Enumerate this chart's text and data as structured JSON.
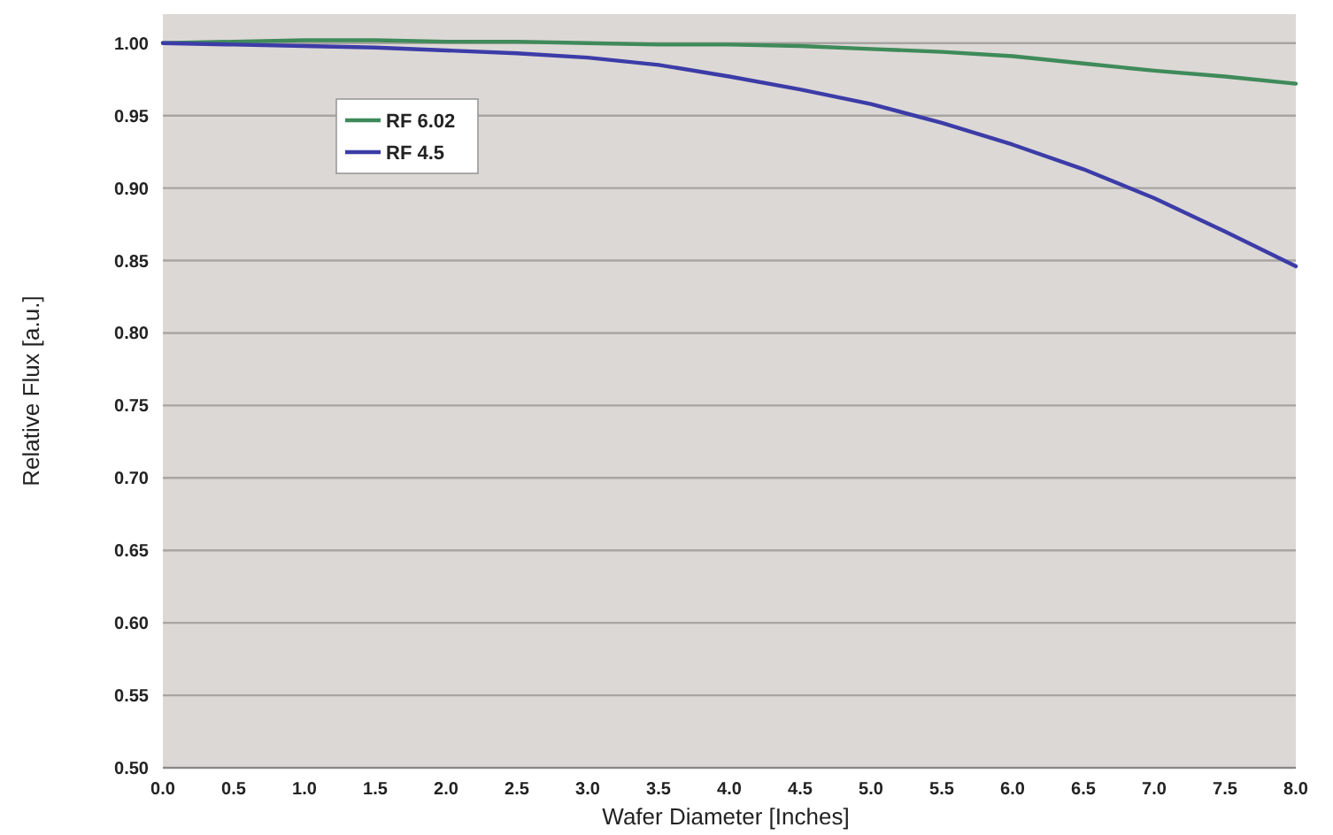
{
  "chart_data": {
    "type": "line",
    "xlabel": "Wafer Diameter [Inches]",
    "ylabel": "Relative Flux [a.u.]",
    "x": [
      0,
      0.5,
      1,
      1.5,
      2,
      2.5,
      3,
      3.5,
      4,
      4.5,
      5,
      5.5,
      6,
      6.5,
      7,
      7.5,
      8
    ],
    "series": [
      {
        "name": "RF 6.02",
        "color": "#3f8a5a",
        "values": [
          1.0,
          1.001,
          1.002,
          1.002,
          1.001,
          1.001,
          1.0,
          0.999,
          0.999,
          0.998,
          0.996,
          0.994,
          0.991,
          0.986,
          0.981,
          0.977,
          0.972
        ]
      },
      {
        "name": "RF 4.5",
        "color": "#3c3ca8",
        "values": [
          1.0,
          0.999,
          0.998,
          0.997,
          0.995,
          0.993,
          0.99,
          0.985,
          0.977,
          0.968,
          0.958,
          0.945,
          0.93,
          0.913,
          0.893,
          0.87,
          0.846
        ]
      }
    ],
    "xlim": [
      0,
      8
    ],
    "xticks": [
      {
        "value": 0,
        "label": "0.0"
      },
      {
        "value": 0.5,
        "label": "0.5"
      },
      {
        "value": 1,
        "label": "1.0"
      },
      {
        "value": 1.5,
        "label": "1.5"
      },
      {
        "value": 2,
        "label": "2.0"
      },
      {
        "value": 2.5,
        "label": "2.5"
      },
      {
        "value": 3,
        "label": "3.0"
      },
      {
        "value": 3.5,
        "label": "3.5"
      },
      {
        "value": 4,
        "label": "4.0"
      },
      {
        "value": 4.5,
        "label": "4.5"
      },
      {
        "value": 5,
        "label": "5.0"
      },
      {
        "value": 5.5,
        "label": "5.5"
      },
      {
        "value": 6,
        "label": "6.0"
      },
      {
        "value": 6.5,
        "label": "6.5"
      },
      {
        "value": 7,
        "label": "7.0"
      },
      {
        "value": 7.5,
        "label": "7.5"
      },
      {
        "value": 8,
        "label": "8.0"
      }
    ],
    "ylim": [
      0.5,
      1.02
    ],
    "yticks": [
      {
        "value": 0.5,
        "label": "0.50"
      },
      {
        "value": 0.55,
        "label": "0.55"
      },
      {
        "value": 0.6,
        "label": "0.60"
      },
      {
        "value": 0.65,
        "label": "0.65"
      },
      {
        "value": 0.7,
        "label": "0.70"
      },
      {
        "value": 0.75,
        "label": "0.75"
      },
      {
        "value": 0.8,
        "label": "0.80"
      },
      {
        "value": 0.85,
        "label": "0.85"
      },
      {
        "value": 0.9,
        "label": "0.90"
      },
      {
        "value": 0.95,
        "label": "0.95"
      },
      {
        "value": 1,
        "label": "1.00"
      }
    ],
    "grid": "y",
    "legend": "top left",
    "marker": "none",
    "line_style": "solid"
  }
}
